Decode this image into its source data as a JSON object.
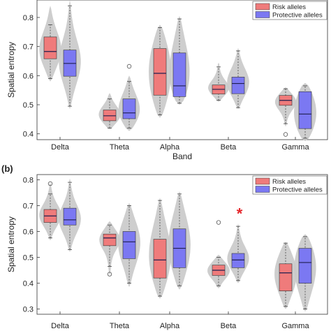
{
  "colors": {
    "risk": "#ef7b7b",
    "protective": "#7b78f2",
    "violin": "#c9c9c9",
    "median": "#1f1f4f",
    "significance": "#e5262b"
  },
  "chart_data": [
    {
      "type": "box-violin",
      "panel_label": "",
      "ylabel": "Spatial entropy",
      "xlabel": "Band",
      "ylim": [
        0.38,
        0.86
      ],
      "yticks": [
        0.4,
        0.5,
        0.6,
        0.7,
        0.8
      ],
      "categories": [
        "Delta",
        "Theta",
        "Alpha",
        "Beta",
        "Gamma"
      ],
      "legend": {
        "position": "top-right",
        "entries": [
          "Risk alleles",
          "Protective alleles"
        ]
      },
      "series": [
        {
          "name": "Risk alleles",
          "boxes": [
            {
              "q1": 0.658,
              "median": 0.683,
              "q3": 0.733,
              "wmin": 0.59,
              "wmax": 0.775,
              "vmin": 0.58,
              "vmax": 0.84
            },
            {
              "q1": 0.445,
              "median": 0.462,
              "q3": 0.482,
              "wmin": 0.42,
              "wmax": 0.52,
              "vmin": 0.415,
              "vmax": 0.54
            },
            {
              "q1": 0.533,
              "median": 0.608,
              "q3": 0.693,
              "wmin": 0.465,
              "wmax": 0.765,
              "vmin": 0.455,
              "vmax": 0.775
            },
            {
              "q1": 0.537,
              "median": 0.553,
              "q3": 0.568,
              "wmin": 0.515,
              "wmax": 0.63,
              "vmin": 0.51,
              "vmax": 0.645
            },
            {
              "q1": 0.498,
              "median": 0.515,
              "q3": 0.532,
              "wmin": 0.435,
              "wmax": 0.555,
              "vmin": 0.425,
              "vmax": 0.56
            }
          ],
          "outliers": [
            [],
            [],
            [],
            [],
            [
              0.398
            ]
          ]
        },
        {
          "name": "Protective alleles",
          "boxes": [
            {
              "q1": 0.598,
              "median": 0.642,
              "q3": 0.688,
              "wmin": 0.495,
              "wmax": 0.84,
              "vmin": 0.485,
              "vmax": 0.86
            },
            {
              "q1": 0.452,
              "median": 0.472,
              "q3": 0.52,
              "wmin": 0.42,
              "wmax": 0.58,
              "vmin": 0.41,
              "vmax": 0.6
            },
            {
              "q1": 0.528,
              "median": 0.565,
              "q3": 0.678,
              "wmin": 0.505,
              "wmax": 0.795,
              "vmin": 0.5,
              "vmax": 0.805
            },
            {
              "q1": 0.538,
              "median": 0.573,
              "q3": 0.595,
              "wmin": 0.49,
              "wmax": 0.685,
              "vmin": 0.485,
              "vmax": 0.695
            },
            {
              "q1": 0.418,
              "median": 0.468,
              "q3": 0.545,
              "wmin": 0.385,
              "wmax": 0.565,
              "vmin": 0.375,
              "vmax": 0.575
            }
          ],
          "outliers": [
            [],
            [
              0.632
            ],
            [],
            [],
            []
          ]
        }
      ],
      "significance": []
    },
    {
      "type": "box-violin",
      "panel_label": "(b)",
      "ylabel": "Spatial entropy",
      "xlabel": "",
      "ylim": [
        0.28,
        0.82
      ],
      "yticks": [
        0.3,
        0.4,
        0.5,
        0.6,
        0.7,
        0.8
      ],
      "categories": [
        "Delta",
        "Theta",
        "Alpha",
        "Beta",
        "Gamma"
      ],
      "legend": {
        "position": "top-right",
        "entries": [
          "Risk alleles",
          "Protective alleles"
        ]
      },
      "series": [
        {
          "name": "Risk alleles",
          "boxes": [
            {
              "q1": 0.635,
              "median": 0.66,
              "q3": 0.685,
              "wmin": 0.575,
              "wmax": 0.745,
              "vmin": 0.565,
              "vmax": 0.79
            },
            {
              "q1": 0.545,
              "median": 0.575,
              "q3": 0.59,
              "wmin": 0.465,
              "wmax": 0.625,
              "vmin": 0.43,
              "vmax": 0.64
            },
            {
              "q1": 0.42,
              "median": 0.49,
              "q3": 0.57,
              "wmin": 0.35,
              "wmax": 0.72,
              "vmin": 0.34,
              "vmax": 0.73
            },
            {
              "q1": 0.43,
              "median": 0.45,
              "q3": 0.47,
              "wmin": 0.39,
              "wmax": 0.5,
              "vmin": 0.38,
              "vmax": 0.51
            },
            {
              "q1": 0.37,
              "median": 0.44,
              "q3": 0.475,
              "wmin": 0.31,
              "wmax": 0.555,
              "vmin": 0.3,
              "vmax": 0.56
            }
          ],
          "outliers": [
            [
              0.785
            ],
            [
              0.435
            ],
            [],
            [
              0.635
            ],
            []
          ]
        },
        {
          "name": "Protective alleles",
          "boxes": [
            {
              "q1": 0.625,
              "median": 0.645,
              "q3": 0.69,
              "wmin": 0.53,
              "wmax": 0.79,
              "vmin": 0.52,
              "vmax": 0.805
            },
            {
              "q1": 0.495,
              "median": 0.56,
              "q3": 0.6,
              "wmin": 0.4,
              "wmax": 0.7,
              "vmin": 0.385,
              "vmax": 0.71
            },
            {
              "q1": 0.46,
              "median": 0.535,
              "q3": 0.61,
              "wmin": 0.39,
              "wmax": 0.745,
              "vmin": 0.375,
              "vmax": 0.755
            },
            {
              "q1": 0.46,
              "median": 0.49,
              "q3": 0.515,
              "wmin": 0.41,
              "wmax": 0.62,
              "vmin": 0.4,
              "vmax": 0.63
            },
            {
              "q1": 0.4,
              "median": 0.48,
              "q3": 0.535,
              "wmin": 0.3,
              "wmax": 0.58,
              "vmin": 0.29,
              "vmax": 0.59
            }
          ],
          "outliers": [
            [],
            [],
            [],
            [],
            []
          ]
        }
      ],
      "significance": [
        {
          "category": "Beta",
          "symbol": "*",
          "y": 0.675
        }
      ]
    }
  ]
}
